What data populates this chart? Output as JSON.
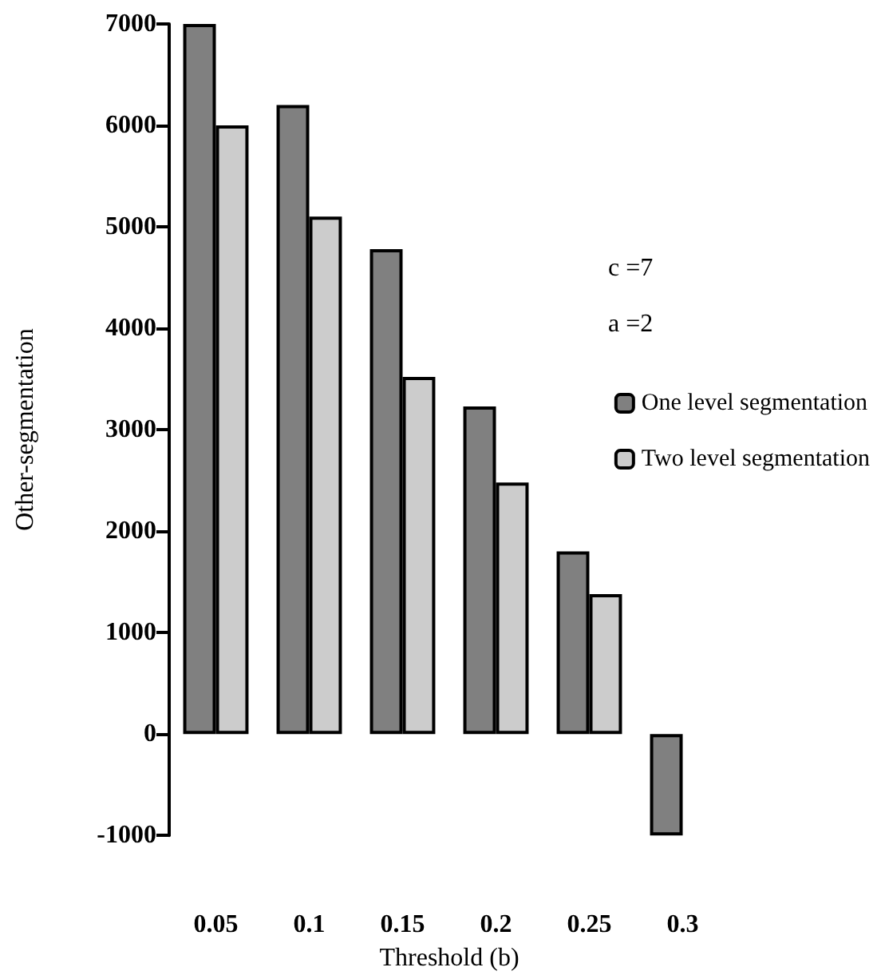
{
  "chart_data": {
    "type": "bar",
    "xlabel": "Threshold (b)",
    "ylabel": "Other-segmentation",
    "categories": [
      "0.05",
      "0.1",
      "0.15",
      "0.2",
      "0.25",
      "0.3"
    ],
    "series": [
      {
        "name": "One level segmentation",
        "color": "#808080",
        "values": [
          7000,
          6200,
          4780,
          3230,
          1800,
          -1000
        ]
      },
      {
        "name": "Two level segmentation",
        "color": "#cccccc",
        "values": [
          6000,
          5100,
          3520,
          2480,
          1380,
          null
        ]
      }
    ],
    "ylim": [
      -1000,
      7000
    ],
    "yticks": [
      -1000,
      0,
      1000,
      2000,
      3000,
      4000,
      5000,
      6000,
      7000
    ],
    "annotations": [
      "c =7",
      "a =2"
    ],
    "legend": "right",
    "grid": false
  }
}
